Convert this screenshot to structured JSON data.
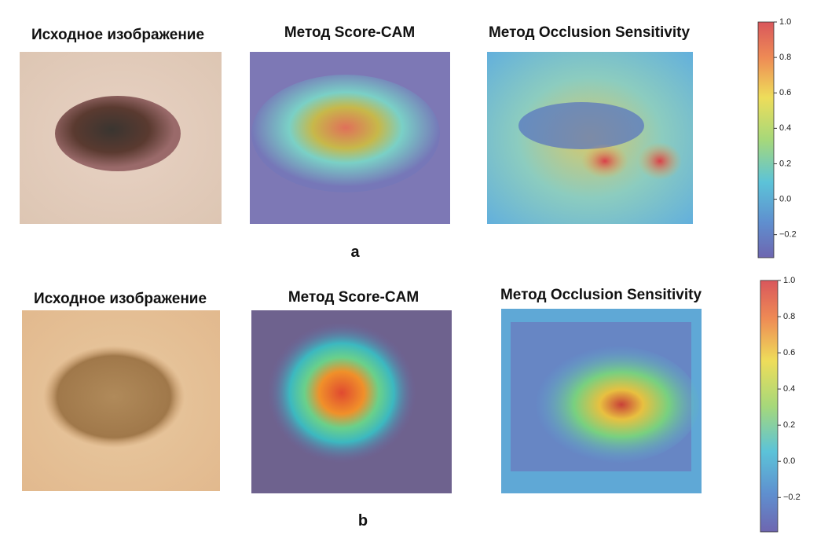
{
  "panels": [
    {
      "label": "a",
      "titles": [
        "Исходное изображение",
        "Метод Score-CAM",
        "Метод Occlusion Sensitivity"
      ],
      "colorbar": {
        "lim": [
          -0.33,
          1
        ],
        "ticks": [
          {
            "value": 1,
            "label": "1.0"
          },
          0.8,
          0.6,
          0.4,
          0.2,
          {
            "value": 0,
            "label": "0.0"
          },
          {
            "value": -0.2,
            "label": "−0.2"
          }
        ]
      }
    },
    {
      "label": "b",
      "titles": [
        "Исходное изображение",
        "Метод Score-CAM",
        "Метод Occlusion Sensitivity"
      ],
      "colorbar": {
        "lim": [
          -0.39,
          1
        ],
        "ticks": [
          {
            "value": 1,
            "label": "1.0"
          },
          0.8,
          0.6,
          0.4,
          0.2,
          {
            "value": 0,
            "label": "0.0"
          },
          {
            "value": -0.2,
            "label": "−0.2"
          }
        ]
      }
    }
  ]
}
